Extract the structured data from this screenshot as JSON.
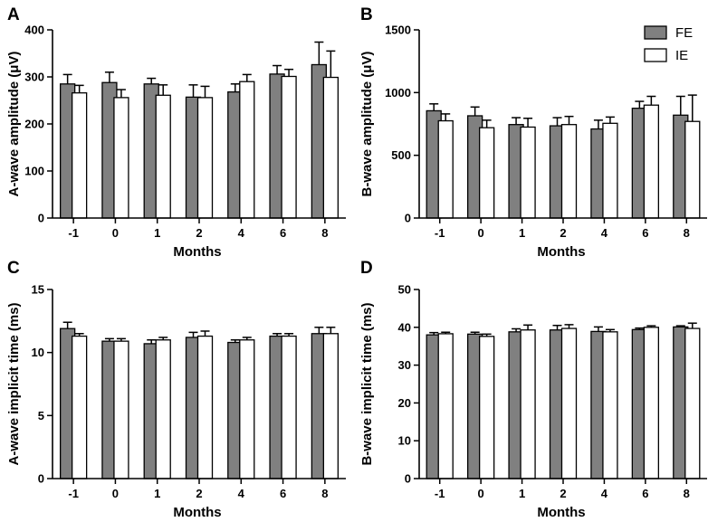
{
  "legend": {
    "series": [
      {
        "name": "FE",
        "color": "#808080"
      },
      {
        "name": "IE",
        "color": "#ffffff"
      }
    ]
  },
  "chart_data": [
    {
      "panel": "A",
      "type": "bar",
      "title": "",
      "xlabel": "Months",
      "ylabel": "A-wave amplitude (μV)",
      "ylim": [
        0,
        400
      ],
      "yticks": [
        0,
        100,
        200,
        300,
        400
      ],
      "categories": [
        "-1",
        "0",
        "1",
        "2",
        "4",
        "6",
        "8"
      ],
      "series": [
        {
          "name": "FE",
          "values": [
            285,
            288,
            285,
            257,
            268,
            306,
            326
          ],
          "errors": [
            20,
            22,
            12,
            26,
            17,
            18,
            48
          ]
        },
        {
          "name": "IE",
          "values": [
            266,
            256,
            261,
            256,
            290,
            301,
            299
          ],
          "errors": [
            16,
            17,
            22,
            24,
            15,
            15,
            56
          ]
        }
      ]
    },
    {
      "panel": "B",
      "type": "bar",
      "title": "",
      "xlabel": "Months",
      "ylabel": "B-wave amplitude (μV)",
      "ylim": [
        0,
        1500
      ],
      "yticks": [
        0,
        500,
        1000,
        1500
      ],
      "categories": [
        "-1",
        "0",
        "1",
        "2",
        "4",
        "6",
        "8"
      ],
      "series": [
        {
          "name": "FE",
          "values": [
            855,
            815,
            745,
            735,
            710,
            875,
            820
          ],
          "errors": [
            55,
            70,
            55,
            65,
            70,
            55,
            150
          ]
        },
        {
          "name": "IE",
          "values": [
            775,
            720,
            725,
            745,
            755,
            900,
            770
          ],
          "errors": [
            55,
            60,
            70,
            65,
            50,
            70,
            210
          ]
        }
      ]
    },
    {
      "panel": "C",
      "type": "bar",
      "title": "",
      "xlabel": "Months",
      "ylabel": "A-wave implicit time (ms)",
      "ylim": [
        0,
        15
      ],
      "yticks": [
        0,
        5,
        10,
        15
      ],
      "categories": [
        "-1",
        "0",
        "1",
        "2",
        "4",
        "6",
        "8"
      ],
      "series": [
        {
          "name": "FE",
          "values": [
            11.9,
            10.9,
            10.7,
            11.2,
            10.8,
            11.3,
            11.5
          ],
          "errors": [
            0.5,
            0.2,
            0.3,
            0.4,
            0.2,
            0.2,
            0.5
          ]
        },
        {
          "name": "IE",
          "values": [
            11.3,
            10.9,
            11.0,
            11.3,
            11.0,
            11.3,
            11.5
          ],
          "errors": [
            0.2,
            0.2,
            0.2,
            0.4,
            0.2,
            0.2,
            0.5
          ]
        }
      ]
    },
    {
      "panel": "D",
      "type": "bar",
      "title": "",
      "xlabel": "Months",
      "ylabel": "B-wave implicit time (ms)",
      "ylim": [
        0,
        50
      ],
      "yticks": [
        0,
        10,
        20,
        30,
        40,
        50
      ],
      "categories": [
        "-1",
        "0",
        "1",
        "2",
        "4",
        "6",
        "8"
      ],
      "series": [
        {
          "name": "FE",
          "values": [
            38.0,
            38.2,
            38.8,
            39.3,
            38.9,
            39.4,
            40.1
          ],
          "errors": [
            0.6,
            0.5,
            0.8,
            1.2,
            1.2,
            0.4,
            0.3
          ]
        },
        {
          "name": "IE",
          "values": [
            38.3,
            37.6,
            39.3,
            39.7,
            38.8,
            40.0,
            39.7
          ],
          "errors": [
            0.4,
            0.6,
            1.3,
            1.0,
            0.6,
            0.4,
            1.4
          ]
        }
      ]
    }
  ]
}
